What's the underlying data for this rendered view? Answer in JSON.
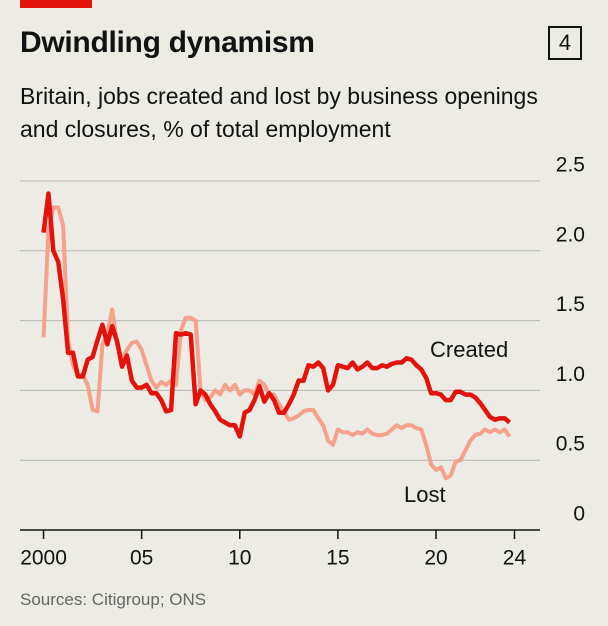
{
  "chart_data": {
    "type": "line",
    "title": "Dwindling dynamism",
    "page_number": "4",
    "subtitle": "Britain, jobs created and lost by business openings and closures, % of total employment",
    "source": "Sources: Citigroup; ONS",
    "x": [
      2000,
      2000.25,
      2000.5,
      2000.75,
      2001,
      2001.25,
      2001.5,
      2001.75,
      2002,
      2002.25,
      2002.5,
      2002.75,
      2003,
      2003.25,
      2003.5,
      2003.75,
      2004,
      2004.25,
      2004.5,
      2004.75,
      2005,
      2005.25,
      2005.5,
      2005.75,
      2006,
      2006.25,
      2006.5,
      2006.75,
      2007,
      2007.25,
      2007.5,
      2007.75,
      2008,
      2008.25,
      2008.5,
      2008.75,
      2009,
      2009.25,
      2009.5,
      2009.75,
      2010,
      2010.25,
      2010.5,
      2010.75,
      2011,
      2011.25,
      2011.5,
      2011.75,
      2012,
      2012.25,
      2012.5,
      2012.75,
      2013,
      2013.25,
      2013.5,
      2013.75,
      2014,
      2014.25,
      2014.5,
      2014.75,
      2015,
      2015.25,
      2015.5,
      2015.75,
      2016,
      2016.25,
      2016.5,
      2016.75,
      2017,
      2017.25,
      2017.5,
      2017.75,
      2018,
      2018.25,
      2018.5,
      2018.75,
      2019,
      2019.25,
      2019.5,
      2019.75,
      2020,
      2020.25,
      2020.5,
      2020.75,
      2021,
      2021.25,
      2021.5,
      2021.75,
      2022,
      2022.25,
      2022.5,
      2022.75,
      2023,
      2023.25,
      2023.5,
      2023.75
    ],
    "series": [
      {
        "name": "Created",
        "color": "#e3120b",
        "width": 4.5,
        "values": [
          2.13,
          2.41,
          2.0,
          1.92,
          1.65,
          1.27,
          1.27,
          1.1,
          1.1,
          1.22,
          1.24,
          1.36,
          1.47,
          1.33,
          1.46,
          1.35,
          1.17,
          1.25,
          1.07,
          1.02,
          1.02,
          1.04,
          0.98,
          0.98,
          0.93,
          0.85,
          0.86,
          1.41,
          1.4,
          1.41,
          1.4,
          0.9,
          1.0,
          0.97,
          0.9,
          0.85,
          0.79,
          0.77,
          0.75,
          0.75,
          0.67,
          0.84,
          0.86,
          0.93,
          1.03,
          0.92,
          0.98,
          0.93,
          0.84,
          0.84,
          0.9,
          0.97,
          1.07,
          1.07,
          1.18,
          1.17,
          1.2,
          1.16,
          1.0,
          1.04,
          1.18,
          1.17,
          1.16,
          1.2,
          1.15,
          1.17,
          1.2,
          1.16,
          1.16,
          1.18,
          1.17,
          1.19,
          1.2,
          1.2,
          1.23,
          1.22,
          1.18,
          1.15,
          1.09,
          0.98,
          0.98,
          0.97,
          0.93,
          0.93,
          0.99,
          0.99,
          0.97,
          0.97,
          0.95,
          0.91,
          0.86,
          0.81,
          0.79,
          0.8,
          0.8,
          0.77
        ]
      },
      {
        "name": "Lost",
        "color": "#f5a18b",
        "width": 4,
        "values": [
          1.38,
          2.15,
          2.31,
          2.31,
          2.18,
          1.36,
          1.18,
          1.11,
          1.11,
          1.04,
          0.86,
          0.85,
          1.33,
          1.4,
          1.58,
          1.33,
          1.22,
          1.29,
          1.34,
          1.35,
          1.29,
          1.18,
          1.07,
          1.02,
          1.06,
          1.04,
          1.07,
          1.04,
          1.43,
          1.52,
          1.52,
          1.5,
          1.0,
          0.93,
          0.95,
          1.0,
          0.97,
          1.04,
          1.0,
          1.04,
          0.97,
          1.0,
          1.0,
          0.97,
          1.07,
          1.04,
          0.97,
          0.97,
          0.9,
          0.85,
          0.79,
          0.8,
          0.82,
          0.85,
          0.86,
          0.86,
          0.8,
          0.75,
          0.64,
          0.61,
          0.72,
          0.7,
          0.7,
          0.68,
          0.7,
          0.69,
          0.72,
          0.69,
          0.68,
          0.68,
          0.69,
          0.72,
          0.75,
          0.73,
          0.75,
          0.75,
          0.73,
          0.72,
          0.61,
          0.47,
          0.43,
          0.45,
          0.37,
          0.39,
          0.49,
          0.5,
          0.57,
          0.64,
          0.68,
          0.69,
          0.72,
          0.7,
          0.72,
          0.7,
          0.72,
          0.67
        ]
      }
    ],
    "xlim": [
      1998.8,
      2025.3
    ],
    "xticks": [
      2000,
      {
        "value": 2005,
        "label": "05"
      },
      {
        "value": 2010,
        "label": "10"
      },
      {
        "value": 2015,
        "label": "15"
      },
      {
        "value": 2020,
        "label": "20"
      },
      {
        "value": 2024,
        "label": "24"
      }
    ],
    "ylim": [
      0,
      2.5
    ],
    "yticks": [
      0,
      0.5,
      {
        "value": 1,
        "label": "1.0"
      },
      1.5,
      {
        "value": 2,
        "label": "2.0"
      },
      2.5
    ],
    "grid": true
  }
}
